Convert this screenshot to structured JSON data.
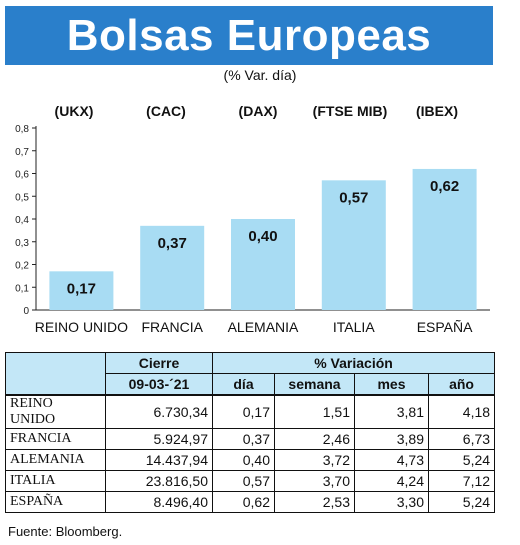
{
  "header": {
    "title": "Bolsas Europeas",
    "subtitle": "(% Var. día)"
  },
  "chart_data": {
    "type": "bar",
    "title": "Bolsas Europeas",
    "subtitle": "(% Var. día)",
    "categories": [
      "REINO UNIDO",
      "FRANCIA",
      "ALEMANIA",
      "ITALIA",
      "ESPAÑA"
    ],
    "index_labels": [
      "(UKX)",
      "(CAC)",
      "(DAX)",
      "(FTSE MIB)",
      "(IBEX)"
    ],
    "values": [
      0.17,
      0.37,
      0.4,
      0.57,
      0.62
    ],
    "value_labels": [
      "0,17",
      "0,37",
      "0,40",
      "0,57",
      "0,62"
    ],
    "y_ticks": [
      "0",
      "0,1",
      "0,2",
      "0,3",
      "0,4",
      "0,5",
      "0,6",
      "0,7",
      "0,8"
    ],
    "ylim": [
      0,
      0.8
    ],
    "grid": false,
    "bar_color": "#a8dcf3",
    "xlabel": "",
    "ylabel": ""
  },
  "table": {
    "header_cierre": "Cierre",
    "header_variacion": "% Variación",
    "date": "09-03-´21",
    "columns": [
      "día",
      "semana",
      "mes",
      "año"
    ],
    "rows": [
      {
        "name": "REINO UNIDO",
        "cierre": "6.730,34",
        "dia": "0,17",
        "semana": "1,51",
        "mes": "3,81",
        "ano": "4,18"
      },
      {
        "name": "FRANCIA",
        "cierre": "5.924,97",
        "dia": "0,37",
        "semana": "2,46",
        "mes": "3,89",
        "ano": "6,73"
      },
      {
        "name": "ALEMANIA",
        "cierre": "14.437,94",
        "dia": "0,40",
        "semana": "3,72",
        "mes": "4,73",
        "ano": "5,24"
      },
      {
        "name": "ITALIA",
        "cierre": "23.816,50",
        "dia": "0,57",
        "semana": "3,70",
        "mes": "4,24",
        "ano": "7,12"
      },
      {
        "name": "ESPAÑA",
        "cierre": "8.496,40",
        "dia": "0,62",
        "semana": "2,53",
        "mes": "3,30",
        "ano": "5,24"
      }
    ],
    "header_color": "#c3e7f7"
  },
  "source": "Fuente: Bloomberg."
}
